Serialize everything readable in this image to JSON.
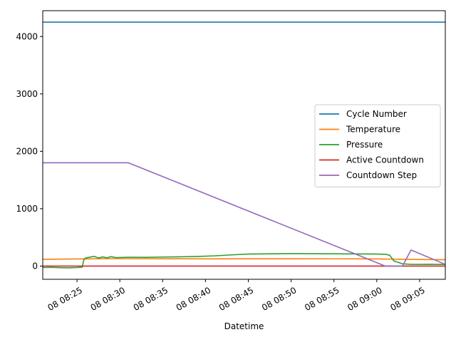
{
  "chart_data": {
    "type": "line",
    "title": "",
    "xlabel": "Datetime",
    "ylabel": "",
    "x_tick_labels": [
      "08 08:25",
      "08 08:30",
      "08 08:35",
      "08 08:40",
      "08 08:45",
      "08 08:50",
      "08 08:55",
      "08 09:00",
      "08 09:05"
    ],
    "x_tick_times": [
      "08:25",
      "08:30",
      "08:35",
      "08:40",
      "08:45",
      "08:50",
      "08:55",
      "09:00",
      "09:05"
    ],
    "xlim": [
      "08:21",
      "09:08"
    ],
    "y_ticks": [
      0,
      1000,
      2000,
      3000,
      4000
    ],
    "y_tick_labels": [
      "0",
      "1000",
      "2000",
      "3000",
      "4000"
    ],
    "ylim": [
      -230,
      4450
    ],
    "grid": false,
    "legend_position": "center-right",
    "series": [
      {
        "name": "Cycle Number",
        "color": "#1f77b4",
        "x": [
          "08:21",
          "09:08"
        ],
        "y": [
          4250,
          4250
        ]
      },
      {
        "name": "Temperature",
        "color": "#ff7f0e",
        "x": [
          "08:21",
          "08:25",
          "08:30",
          "08:35",
          "08:40",
          "08:45",
          "08:50",
          "08:55",
          "09:00",
          "09:05",
          "09:08"
        ],
        "y": [
          118,
          125,
          130,
          128,
          126,
          128,
          128,
          127,
          125,
          115,
          110
        ]
      },
      {
        "name": "Pressure",
        "color": "#2ca02c",
        "x": [
          "08:21",
          "08:22",
          "08:23",
          "08:24",
          "08:25",
          "08:25.6",
          "08:25.8",
          "08:26",
          "08:27",
          "08:27.5",
          "08:28",
          "08:28.5",
          "08:29",
          "08:29.5",
          "08:30",
          "08:31",
          "08:33",
          "08:35",
          "08:37",
          "08:39",
          "08:41",
          "08:43",
          "08:45",
          "08:50",
          "08:55",
          "08:58",
          "09:00",
          "09:01",
          "09:01.5",
          "09:02",
          "09:03",
          "09:04",
          "09:05",
          "09:06",
          "09:07",
          "09:08"
        ],
        "y": [
          -25,
          -22,
          -28,
          -30,
          -25,
          -20,
          110,
          140,
          170,
          140,
          160,
          145,
          165,
          148,
          150,
          155,
          152,
          158,
          162,
          168,
          178,
          195,
          210,
          218,
          215,
          212,
          210,
          205,
          190,
          90,
          40,
          30,
          30,
          32,
          30,
          28
        ]
      },
      {
        "name": "Active Countdown",
        "color": "#d62728",
        "x": [
          "08:21",
          "09:08"
        ],
        "y": [
          0,
          0
        ]
      },
      {
        "name": "Countdown Step",
        "color": "#9467bd",
        "x": [
          "08:21",
          "08:31",
          "09:01",
          "09:03",
          "09:04",
          "09:08"
        ],
        "y": [
          1800,
          1800,
          0,
          0,
          280,
          30
        ]
      }
    ]
  }
}
